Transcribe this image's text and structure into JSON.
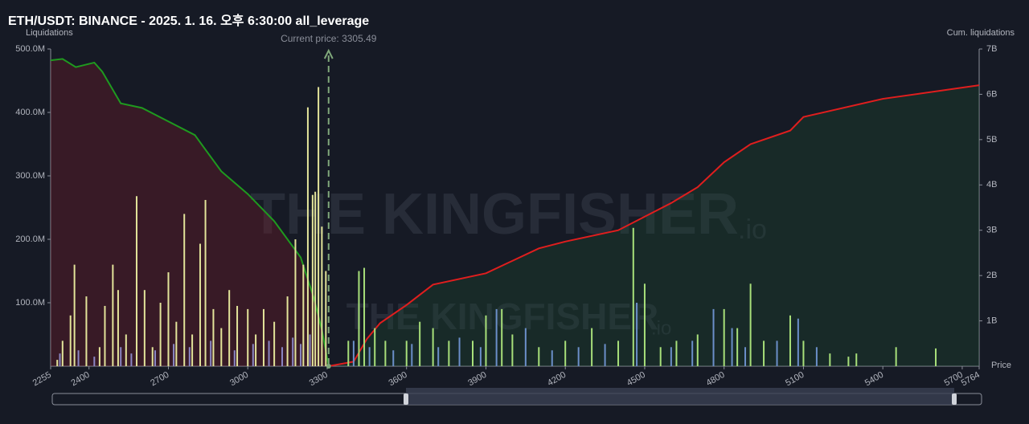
{
  "chart_data": {
    "type": "liquidation",
    "title": "ETH/USDT: BINANCE - 2025. 1. 16. 오후 6:30:00 all_leverage",
    "y_label": "Liquidations",
    "y2_label": "Cum. liquidations",
    "x_label": "Price",
    "annotation": "Current price: 3305.49",
    "current_price": 3305.49,
    "watermark": "THE KINGFISHER",
    "watermark_suffix": ".io",
    "xlim": [
      2255,
      5764
    ],
    "xticks": [
      2255,
      2400,
      2700,
      3000,
      3300,
      3600,
      3900,
      4200,
      4500,
      4800,
      5100,
      5400,
      5700,
      5764
    ],
    "ylim": [
      0,
      500000000
    ],
    "yticks": [
      {
        "value": 100000000,
        "label": "100.0M"
      },
      {
        "value": 200000000,
        "label": "200.0M"
      },
      {
        "value": 300000000,
        "label": "300.0M"
      },
      {
        "value": 400000000,
        "label": "400.0M"
      },
      {
        "value": 500000000,
        "label": "500.0M"
      }
    ],
    "y2lim": [
      0,
      7000000000
    ],
    "y2ticks": [
      {
        "value": 1000000000,
        "label": "1B"
      },
      {
        "value": 2000000000,
        "label": "2B"
      },
      {
        "value": 3000000000,
        "label": "3B"
      },
      {
        "value": 4000000000,
        "label": "4B"
      },
      {
        "value": 5000000000,
        "label": "5B"
      },
      {
        "value": 6000000000,
        "label": "6B"
      },
      {
        "value": 7000000000,
        "label": "7B"
      }
    ],
    "bars": [
      {
        "color": "#e3e49a",
        "x": [
          2280,
          2300,
          2330,
          2345,
          2390,
          2440,
          2460,
          2490,
          2510,
          2540,
          2580,
          2610,
          2640,
          2670,
          2700,
          2730,
          2760,
          2790,
          2820,
          2840,
          2870,
          2900,
          2930,
          2960,
          3000,
          3030,
          3060,
          3100,
          3150,
          3180,
          3210,
          3227,
          3245,
          3255,
          3267,
          3280,
          3295
        ],
        "values": [
          10000000,
          40000000,
          80000000,
          160000000,
          110000000,
          30000000,
          95000000,
          160000000,
          120000000,
          50000000,
          268000000,
          120000000,
          30000000,
          100000000,
          148000000,
          70000000,
          240000000,
          50000000,
          193000000,
          262000000,
          90000000,
          60000000,
          120000000,
          95000000,
          90000000,
          50000000,
          90000000,
          70000000,
          110000000,
          200000000,
          160000000,
          408000000,
          270000000,
          275000000,
          440000000,
          220000000,
          150000000
        ]
      },
      {
        "color": "#8a86c4",
        "x": [
          2290,
          2360,
          2420,
          2520,
          2560,
          2650,
          2720,
          2780,
          2860,
          2950,
          3020,
          3080,
          3130,
          3170,
          3200,
          3235
        ],
        "values": [
          20000000,
          25000000,
          15000000,
          30000000,
          20000000,
          25000000,
          35000000,
          30000000,
          40000000,
          25000000,
          35000000,
          40000000,
          30000000,
          45000000,
          35000000,
          50000000
        ]
      },
      {
        "color": "#a8e07a",
        "x": [
          3380,
          3420,
          3440,
          3480,
          3520,
          3600,
          3650,
          3700,
          3760,
          3850,
          3900,
          3960,
          4000,
          4100,
          4200,
          4300,
          4400,
          4457,
          4500,
          4560,
          4620,
          4700,
          4800,
          4850,
          4900,
          4950,
          5050,
          5100,
          5200,
          5270,
          5300,
          5450,
          5600
        ],
        "values": [
          40000000,
          150000000,
          155000000,
          60000000,
          40000000,
          40000000,
          70000000,
          60000000,
          40000000,
          40000000,
          80000000,
          90000000,
          50000000,
          30000000,
          40000000,
          60000000,
          40000000,
          218000000,
          130000000,
          30000000,
          40000000,
          50000000,
          90000000,
          60000000,
          130000000,
          40000000,
          80000000,
          40000000,
          20000000,
          15000000,
          20000000,
          30000000,
          28000000
        ]
      },
      {
        "color": "#6b8fc9",
        "x": [
          3400,
          3460,
          3550,
          3620,
          3720,
          3800,
          3880,
          3940,
          4050,
          4150,
          4250,
          4350,
          4470,
          4600,
          4680,
          4760,
          4830,
          4880,
          5000,
          5080,
          5150
        ],
        "values": [
          40000000,
          30000000,
          25000000,
          35000000,
          30000000,
          45000000,
          30000000,
          90000000,
          60000000,
          25000000,
          30000000,
          35000000,
          100000000,
          30000000,
          40000000,
          90000000,
          60000000,
          30000000,
          40000000,
          75000000,
          30000000
        ]
      }
    ],
    "series": [
      {
        "color": "#1f9a1f",
        "fill": "rgba(120,30,40,0.35)",
        "axis": "y2",
        "x": [
          2255,
          2300,
          2350,
          2420,
          2450,
          2520,
          2600,
          2700,
          2800,
          2900,
          3000,
          3100,
          3200,
          3250,
          3280,
          3305.49
        ],
        "values": [
          6750000000,
          6780000000,
          6600000000,
          6700000000,
          6500000000,
          5800000000,
          5700000000,
          5400000000,
          5100000000,
          4300000000,
          3800000000,
          3200000000,
          2400000000,
          1500000000,
          800000000,
          0
        ]
      },
      {
        "color": "#e01e1e",
        "fill": "rgba(30,80,50,0.3)",
        "axis": "y2",
        "x": [
          3305.49,
          3400,
          3450,
          3500,
          3600,
          3700,
          3900,
          4100,
          4200,
          4400,
          4600,
          4700,
          4800,
          4900,
          5050,
          5100,
          5400,
          5764
        ],
        "values": [
          0,
          100000000,
          600000000,
          950000000,
          1350000000,
          1800000000,
          2050000000,
          2600000000,
          2750000000,
          3000000000,
          3600000000,
          3950000000,
          4500000000,
          4900000000,
          5200000000,
          5500000000,
          5900000000,
          6200000000
        ]
      }
    ]
  }
}
